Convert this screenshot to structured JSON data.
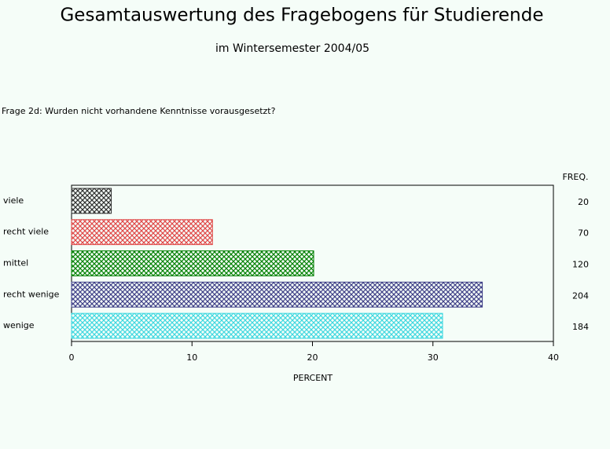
{
  "chart_data": {
    "type": "hbar",
    "title": "Gesamtauswertung des Fragebogens für Studierende",
    "subtitle": "im Wintersemester 2004/05",
    "question": "Frage 2d: Wurden nicht vorhandene Kenntnisse vorausgesetzt?",
    "xlabel": "PERCENT",
    "freq_header": "FREQ.",
    "categories": [
      "viele",
      "recht viele",
      "mittel",
      "recht wenige",
      "wenige"
    ],
    "values": [
      3.3,
      11.7,
      20.1,
      34.1,
      30.8
    ],
    "freq": [
      20,
      70,
      120,
      204,
      184
    ],
    "colors": [
      "#303030",
      "#e04848",
      "#008000",
      "#404088",
      "#40d8e0"
    ],
    "xlim": [
      0,
      40
    ],
    "xticks": [
      0,
      10,
      20,
      30,
      40
    ]
  }
}
